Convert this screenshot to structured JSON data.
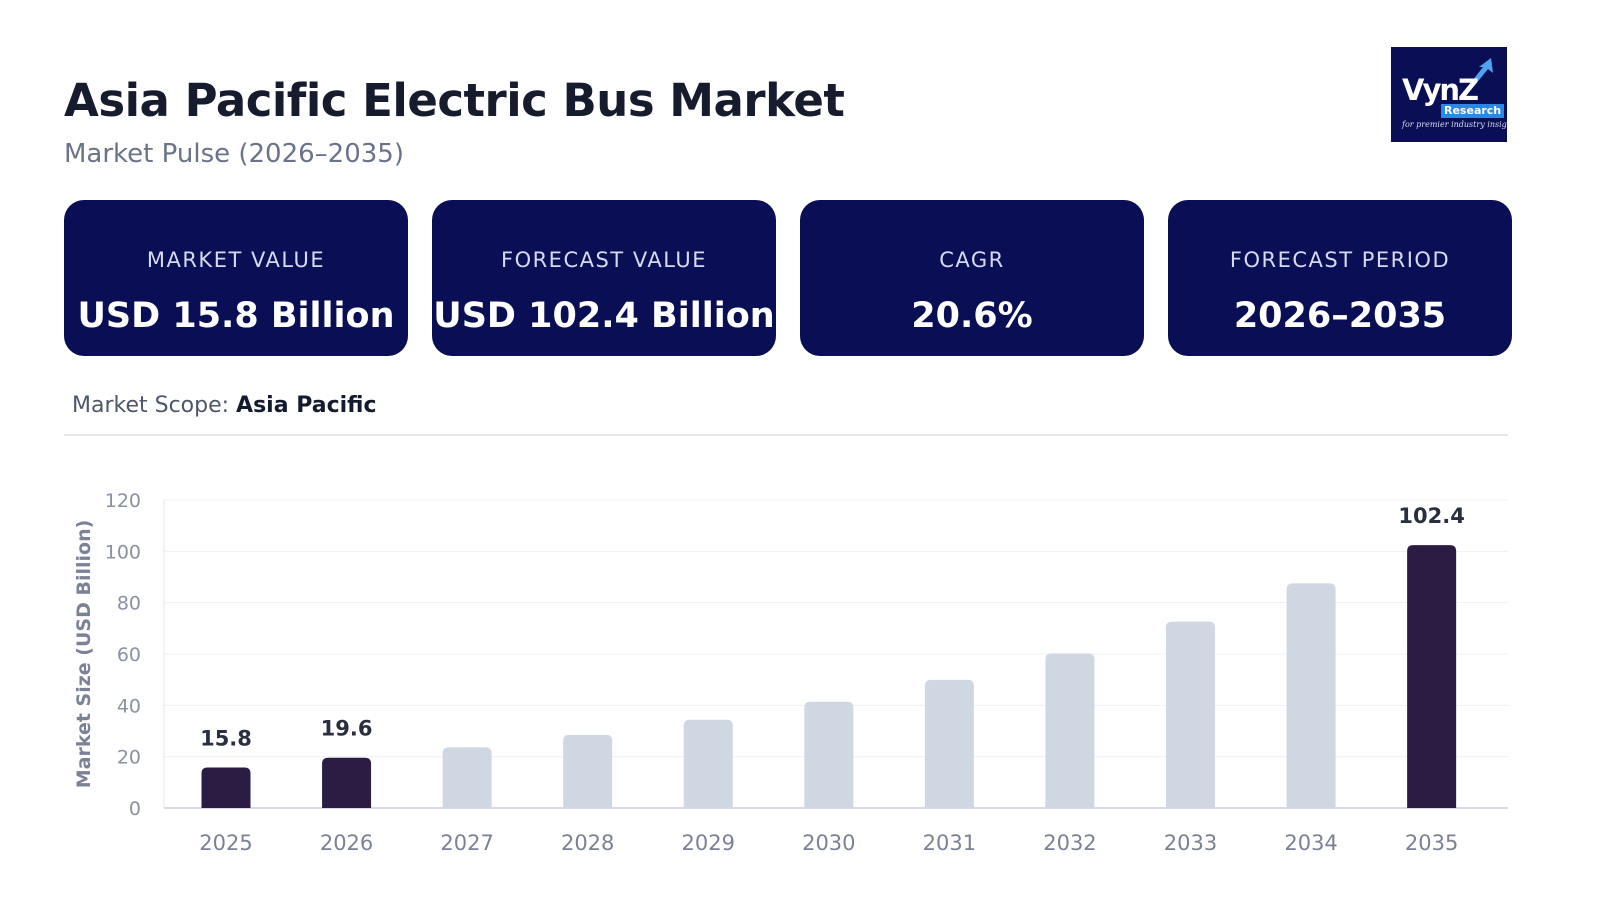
{
  "header": {
    "title": "Asia Pacific Electric Bus Market",
    "subtitle": "Market Pulse (2026–2035)"
  },
  "logo": {
    "brand": "VynZ",
    "sub": "Research",
    "tagline": "for premier industry insights"
  },
  "cards": [
    {
      "label": "MARKET VALUE",
      "value": "USD 15.8 Billion"
    },
    {
      "label": "FORECAST VALUE",
      "value": "USD 102.4 Billion"
    },
    {
      "label": "CAGR",
      "value": "20.6%"
    },
    {
      "label": "FORECAST PERIOD",
      "value": "2026–2035"
    }
  ],
  "scope": {
    "label": "Market Scope: ",
    "value": "Asia Pacific"
  },
  "colors": {
    "navy": "#0a0f55",
    "highlight_bar": "#2b1c44",
    "regular_bar": "#cfd7e3"
  },
  "chart_data": {
    "type": "bar",
    "ylabel": "Market Size (USD Billion)",
    "xlabel": "",
    "ylim": [
      0,
      120
    ],
    "yticks": [
      0,
      20,
      40,
      60,
      80,
      100,
      120
    ],
    "grid": true,
    "categories": [
      "2025",
      "2026",
      "2027",
      "2028",
      "2029",
      "2030",
      "2031",
      "2032",
      "2033",
      "2034",
      "2035"
    ],
    "values": [
      15.8,
      19.6,
      23.6,
      28.5,
      34.4,
      41.4,
      49.9,
      60.2,
      72.6,
      87.5,
      102.4
    ],
    "highlighted": [
      "2025",
      "2026",
      "2035"
    ],
    "data_labels": {
      "2025": "15.8",
      "2026": "19.6",
      "2035": "102.4"
    }
  }
}
